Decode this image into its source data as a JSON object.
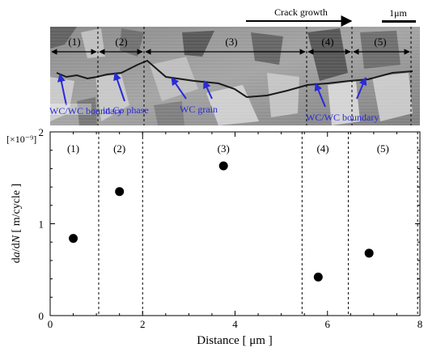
{
  "micrograph": {
    "scale_label": "1μm",
    "crack_label": "Crack growth",
    "region_labels": [
      "(1)",
      "(2)",
      "(3)",
      "(4)",
      "(5)"
    ],
    "annotations": [
      "WC/WC boundary",
      "in Co phase",
      "WC grain",
      "WC/WC boundary"
    ],
    "annotation_color": "#2a2ad8"
  },
  "chart_data": {
    "type": "scatter",
    "xlabel": "Distance [ μm ]",
    "ylabel_parts": [
      "d",
      "a",
      "/d",
      "N",
      " [ m/cycle ]"
    ],
    "y_multiplier": "[×10⁻⁹]",
    "xlim": [
      0,
      8
    ],
    "ylim": [
      0,
      2
    ],
    "x_ticks": [
      0,
      2,
      4,
      6,
      8
    ],
    "y_ticks": [
      0,
      1,
      2
    ],
    "x_tick_labels": [
      "0",
      "2",
      "4",
      "6",
      "8"
    ],
    "y_tick_labels": [
      "0",
      "1",
      "2"
    ],
    "region_boundaries": [
      1.05,
      2.0,
      5.45,
      6.45,
      7.95
    ],
    "region_labels": [
      "(1)",
      "(2)",
      "(3)",
      "(4)",
      "(5)"
    ],
    "region_label_x": [
      0.5,
      1.5,
      3.75,
      5.9,
      7.2
    ],
    "points": [
      {
        "x": 0.5,
        "y": 0.84
      },
      {
        "x": 1.5,
        "y": 1.35
      },
      {
        "x": 3.75,
        "y": 1.63
      },
      {
        "x": 5.8,
        "y": 0.42
      },
      {
        "x": 6.9,
        "y": 0.68
      }
    ],
    "grid": false
  }
}
